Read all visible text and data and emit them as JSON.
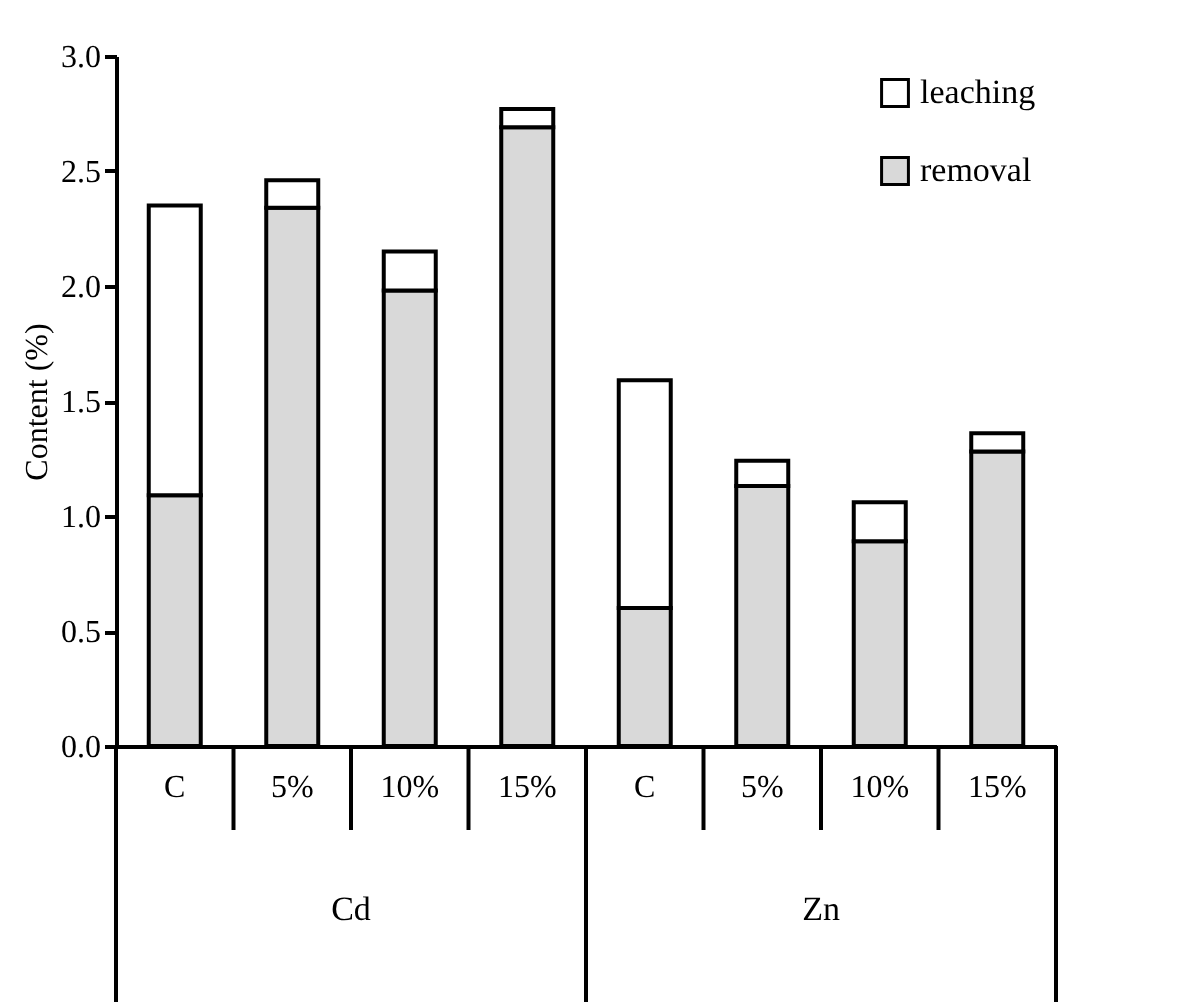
{
  "chart_data": {
    "type": "bar",
    "stacked": true,
    "ylabel": "Content (%)",
    "categories": [
      "C",
      "5%",
      "10%",
      "15%",
      "C",
      "5%",
      "10%",
      "15%"
    ],
    "series": [
      {
        "name": "removal",
        "color": "#d9d9d9",
        "values": [
          1.09,
          2.34,
          1.98,
          2.69,
          0.6,
          1.13,
          0.89,
          1.28
        ]
      },
      {
        "name": "leaching",
        "color": "#ffffff",
        "values": [
          1.26,
          0.12,
          0.17,
          0.08,
          0.99,
          0.11,
          0.17,
          0.08
        ]
      }
    ],
    "ylim": [
      0,
      3.0
    ],
    "yticks": [
      {
        "value": 0,
        "label": "0.0"
      },
      {
        "value": 0.5,
        "label": "0.5"
      },
      {
        "value": 1.0,
        "label": "1.0"
      },
      {
        "value": 1.5,
        "label": "1.5"
      },
      {
        "value": 2.0,
        "label": "2.0"
      },
      {
        "value": 2.5,
        "label": "2.5"
      },
      {
        "value": 3.0,
        "label": "3.0"
      }
    ],
    "annotations": [
      "Cd",
      "Zn"
    ],
    "legend": "top right",
    "grid": false
  }
}
